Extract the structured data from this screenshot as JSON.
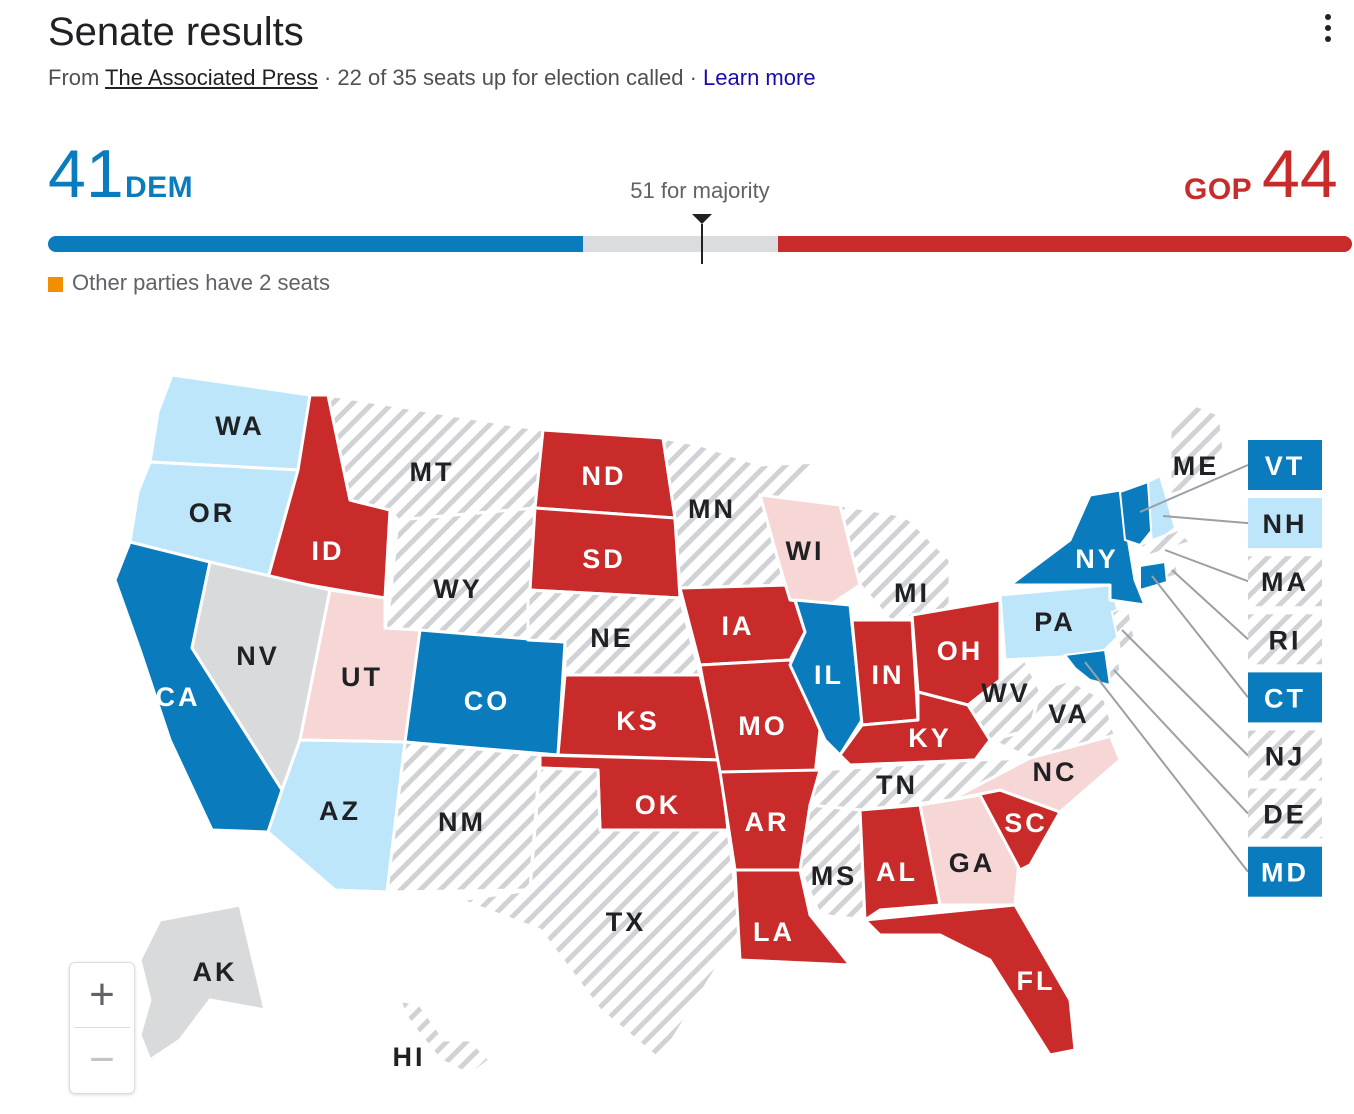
{
  "header": {
    "title": "Senate results",
    "from_prefix": "From",
    "source": "The Associated Press",
    "called_text": " · 22 of 35 seats up for election called · ",
    "learn_more": "Learn more"
  },
  "tally": {
    "dem_count": "41",
    "dem_label": "DEM",
    "gop_label": "GOP",
    "gop_count": "44",
    "majority_text": "51 for majority",
    "dem_seats": 41,
    "gop_seats": 44,
    "majority_seats": 51,
    "total_seats": 100
  },
  "other_parties": "Other parties have 2 seats",
  "colors": {
    "dem_strong": "#0a7cbd",
    "dem_light": "#bde6fb",
    "gop_strong": "#c92a2a",
    "gop_light": "#f7d6d6",
    "undecided": "#d9dadc",
    "no_race": "#ffffff",
    "other": "#f28f00"
  },
  "states": [
    {
      "abbr": "WA",
      "status": "dem-light"
    },
    {
      "abbr": "OR",
      "status": "dem-light"
    },
    {
      "abbr": "CA",
      "status": "dem-called"
    },
    {
      "abbr": "ID",
      "status": "gop-called"
    },
    {
      "abbr": "NV",
      "status": "undecided"
    },
    {
      "abbr": "UT",
      "status": "gop-light"
    },
    {
      "abbr": "AZ",
      "status": "dem-light"
    },
    {
      "abbr": "MT",
      "status": "no-race"
    },
    {
      "abbr": "WY",
      "status": "no-race"
    },
    {
      "abbr": "CO",
      "status": "dem-called"
    },
    {
      "abbr": "NM",
      "status": "no-race"
    },
    {
      "abbr": "ND",
      "status": "gop-called"
    },
    {
      "abbr": "SD",
      "status": "gop-called"
    },
    {
      "abbr": "NE",
      "status": "no-race"
    },
    {
      "abbr": "KS",
      "status": "gop-called"
    },
    {
      "abbr": "OK",
      "status": "gop-called"
    },
    {
      "abbr": "TX",
      "status": "no-race"
    },
    {
      "abbr": "MN",
      "status": "no-race"
    },
    {
      "abbr": "IA",
      "status": "gop-called"
    },
    {
      "abbr": "MO",
      "status": "gop-called"
    },
    {
      "abbr": "AR",
      "status": "gop-called"
    },
    {
      "abbr": "LA",
      "status": "gop-called"
    },
    {
      "abbr": "WI",
      "status": "gop-light"
    },
    {
      "abbr": "IL",
      "status": "dem-called"
    },
    {
      "abbr": "MI",
      "status": "no-race"
    },
    {
      "abbr": "IN",
      "status": "gop-called"
    },
    {
      "abbr": "OH",
      "status": "gop-called"
    },
    {
      "abbr": "KY",
      "status": "gop-called"
    },
    {
      "abbr": "TN",
      "status": "no-race"
    },
    {
      "abbr": "MS",
      "status": "no-race"
    },
    {
      "abbr": "AL",
      "status": "gop-called"
    },
    {
      "abbr": "GA",
      "status": "gop-light"
    },
    {
      "abbr": "FL",
      "status": "gop-called"
    },
    {
      "abbr": "SC",
      "status": "gop-called"
    },
    {
      "abbr": "NC",
      "status": "gop-light"
    },
    {
      "abbr": "VA",
      "status": "no-race"
    },
    {
      "abbr": "WV",
      "status": "no-race"
    },
    {
      "abbr": "PA",
      "status": "dem-light"
    },
    {
      "abbr": "NY",
      "status": "dem-called"
    },
    {
      "abbr": "ME",
      "status": "no-race"
    },
    {
      "abbr": "AK",
      "status": "undecided"
    },
    {
      "abbr": "HI",
      "status": "no-race"
    }
  ],
  "northeast_boxes": [
    {
      "abbr": "VT",
      "status": "dem-called"
    },
    {
      "abbr": "NH",
      "status": "dem-light"
    },
    {
      "abbr": "MA",
      "status": "no-race"
    },
    {
      "abbr": "RI",
      "status": "no-race"
    },
    {
      "abbr": "CT",
      "status": "dem-called"
    },
    {
      "abbr": "NJ",
      "status": "no-race"
    },
    {
      "abbr": "DE",
      "status": "no-race"
    },
    {
      "abbr": "MD",
      "status": "dem-called"
    }
  ],
  "zoom": {
    "in": "+",
    "out": "−"
  }
}
